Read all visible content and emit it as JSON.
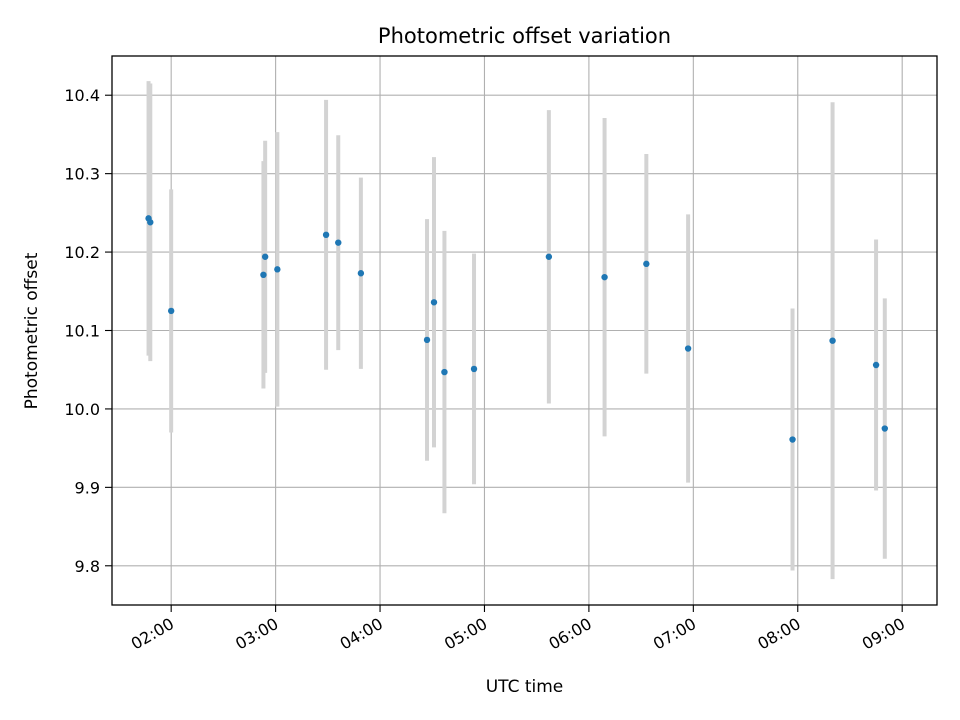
{
  "chart_data": {
    "type": "scatter",
    "title": "Photometric offset variation",
    "xlabel": "UTC time",
    "ylabel": "Photometric offset",
    "x_tick_labels": [
      "02:00",
      "03:00",
      "04:00",
      "05:00",
      "06:00",
      "07:00",
      "08:00",
      "09:00"
    ],
    "y_tick_labels": [
      "9.8",
      "9.9",
      "10.0",
      "10.1",
      "10.2",
      "10.3",
      "10.4"
    ],
    "xlim": [
      "01:26",
      "09:20"
    ],
    "ylim": [
      9.75,
      10.45
    ],
    "grid": true,
    "colors": {
      "point": "#1f77b4",
      "errorbar": "#d3d3d3",
      "grid": "#b0b0b0"
    },
    "series": [
      {
        "points": [
          {
            "t": "01:47",
            "y": 10.243,
            "err": 0.175
          },
          {
            "t": "01:48",
            "y": 10.238,
            "err": 0.177
          },
          {
            "t": "02:00",
            "y": 10.125,
            "err": 0.155
          },
          {
            "t": "02:53",
            "y": 10.171,
            "err": 0.145
          },
          {
            "t": "02:54",
            "y": 10.194,
            "err": 0.148
          },
          {
            "t": "03:01",
            "y": 10.178,
            "err": 0.175
          },
          {
            "t": "03:29",
            "y": 10.222,
            "err": 0.172
          },
          {
            "t": "03:36",
            "y": 10.212,
            "err": 0.137
          },
          {
            "t": "03:49",
            "y": 10.173,
            "err": 0.122
          },
          {
            "t": "04:27",
            "y": 10.088,
            "err": 0.154
          },
          {
            "t": "04:31",
            "y": 10.136,
            "err": 0.185
          },
          {
            "t": "04:37",
            "y": 10.047,
            "err": 0.18
          },
          {
            "t": "04:54",
            "y": 10.051,
            "err": 0.147
          },
          {
            "t": "05:37",
            "y": 10.194,
            "err": 0.187
          },
          {
            "t": "06:09",
            "y": 10.168,
            "err": 0.203
          },
          {
            "t": "06:33",
            "y": 10.185,
            "err": 0.14
          },
          {
            "t": "06:57",
            "y": 10.077,
            "err": 0.171
          },
          {
            "t": "07:57",
            "y": 9.961,
            "err": 0.167
          },
          {
            "t": "08:20",
            "y": 10.087,
            "err": 0.304
          },
          {
            "t": "08:45",
            "y": 10.056,
            "err": 0.16
          },
          {
            "t": "08:50",
            "y": 9.975,
            "err": 0.166
          }
        ]
      }
    ]
  }
}
